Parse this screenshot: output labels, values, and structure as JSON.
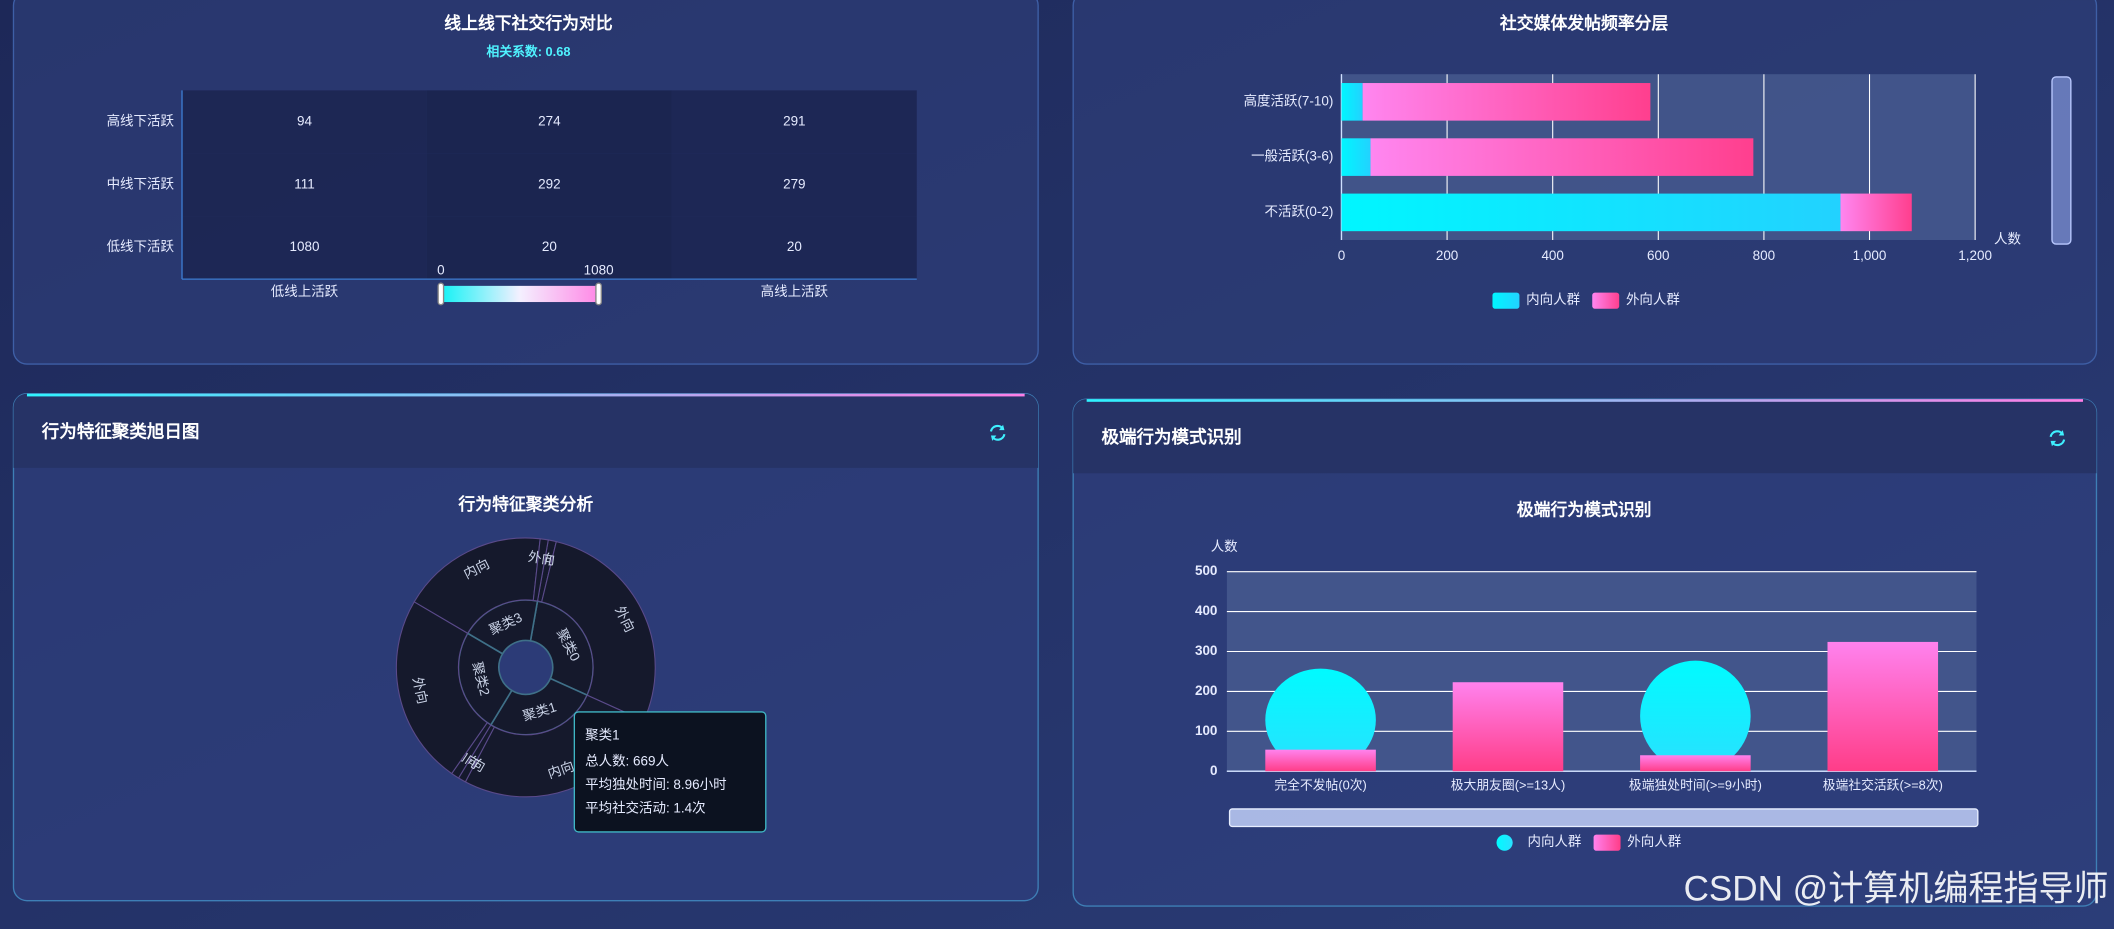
{
  "panels": [
    {
      "header": "行为特征聚类旭日图"
    },
    {
      "header": "极端行为模式识别"
    }
  ],
  "watermark": "CSDN @计算机编程指导师",
  "chart_data": [
    {
      "type": "heatmap",
      "title": "线上线下社交行为对比",
      "subtitle": "相关系数: 0.68",
      "x_categories": [
        "低线上活跃",
        null,
        "高线上活跃"
      ],
      "y_categories": [
        "低线下活跃",
        "中线下活跃",
        "高线下活跃"
      ],
      "values": [
        [
          1080,
          20,
          20
        ],
        [
          111,
          292,
          279
        ],
        [
          94,
          274,
          291
        ]
      ],
      "cell_color": "#1b2550",
      "visual_map": {
        "range": [
          0,
          1080
        ],
        "colors": [
          "#12f2f5",
          "#f4f0ff",
          "#ff88e6"
        ]
      }
    },
    {
      "type": "hbar",
      "title": "社交媒体发帖频率分层",
      "x_label": "人数",
      "categories": [
        "不活跃(0-2)",
        "一般活跃(3-6)",
        "高度活跃(7-10)"
      ],
      "series": [
        {
          "name": "内向人群",
          "color": "#00f6ff",
          "color_end": "#22d2ff",
          "values": [
            945,
            55,
            40
          ]
        },
        {
          "name": "外向人群",
          "color": "#ff86f0",
          "color_end": "#ff3f8e",
          "values": [
            135,
            725,
            545
          ]
        }
      ],
      "xlim": [
        0,
        1200
      ],
      "xticks": [
        0,
        200,
        400,
        600,
        800,
        {
          "value": 1000,
          "label": "1,000"
        },
        {
          "value": 1200,
          "label": "1,200"
        }
      ],
      "grid": true,
      "stacked": true,
      "legend": "bottom"
    },
    {
      "type": "sunburst",
      "title": "行为特征聚类分析",
      "nodes": [
        {
          "name": "聚类0",
          "value": 720,
          "children": [
            {
              "name": "内向",
              "value": 25
            },
            {
              "name": "外向",
              "value": 695
            }
          ]
        },
        {
          "name": "聚类1",
          "value": 669,
          "children": [
            {
              "name": "内向",
              "value": 645
            },
            {
              "name": "外向",
              "value": 24
            }
          ]
        },
        {
          "name": "聚类2",
          "value": 615,
          "children": [
            {
              "name": "内向",
              "value": 25
            },
            {
              "name": "外向",
              "value": 590
            }
          ]
        },
        {
          "name": "聚类3",
          "value": 480,
          "children": [
            {
              "name": "内向",
              "value": 455
            },
            {
              "name": "外向",
              "value": 25
            }
          ]
        }
      ],
      "ring_color": "#15192c",
      "border_color": "#3f7088",
      "tooltip": {
        "title": "聚类1",
        "lines": [
          "总人数: 669人",
          "平均独处时间: 8.96小时",
          "平均社交活动: 1.4次"
        ]
      }
    },
    {
      "type": "bar",
      "title": "极端行为模式识别",
      "y_label": "人数",
      "categories": [
        "完全不发帖(0次)",
        "极大朋友圈(>=13人)",
        "极端独处时间(>=9小时)",
        "极端社交活跃(>=8次)"
      ],
      "series": [
        {
          "name": "内向人群",
          "symbol": "circle",
          "color": "#00fbff",
          "color_end": "#2ae0ff",
          "values": [
            257,
            0,
            277,
            0
          ]
        },
        {
          "name": "外向人群",
          "symbol": "rect",
          "color": "#ff82ee",
          "color_end": "#ff3d88",
          "values": [
            54,
            223,
            40,
            324
          ]
        }
      ],
      "ylim": [
        0,
        500
      ],
      "yticks": [
        0,
        100,
        200,
        300,
        400,
        500
      ],
      "grid": true,
      "legend": "bottom"
    }
  ]
}
